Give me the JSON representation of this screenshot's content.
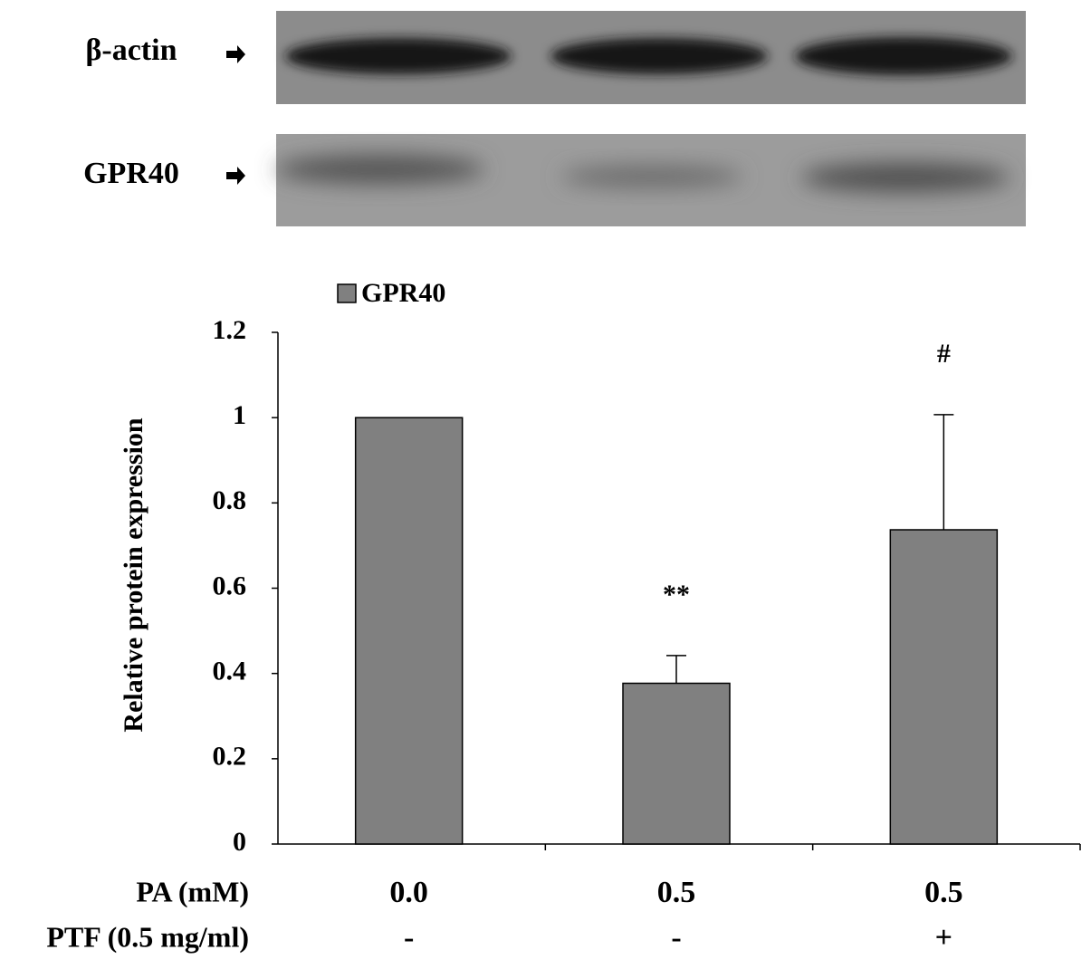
{
  "chart_data": {
    "type": "bar",
    "blot_labels": [
      "β-actin",
      "GPR40"
    ],
    "y_label": "Relative protein expression",
    "category_labels": [
      "PA  (mM)",
      "PTF (0.5 mg/ml)"
    ],
    "categories": [
      "0.0",
      "0.5",
      "0.5"
    ],
    "categories2": [
      "-",
      "-",
      "+"
    ],
    "series": [
      {
        "name": "GPR40",
        "color": "#808080",
        "values": [
          1.0,
          0.377,
          0.737
        ],
        "errors": [
          null,
          0.065,
          0.27
        ]
      }
    ],
    "annotations": [
      null,
      "**",
      "#"
    ],
    "ylim": [
      0,
      1.2
    ],
    "yticks": [
      0,
      0.2,
      0.4,
      0.6,
      0.8,
      1,
      1.2
    ]
  }
}
